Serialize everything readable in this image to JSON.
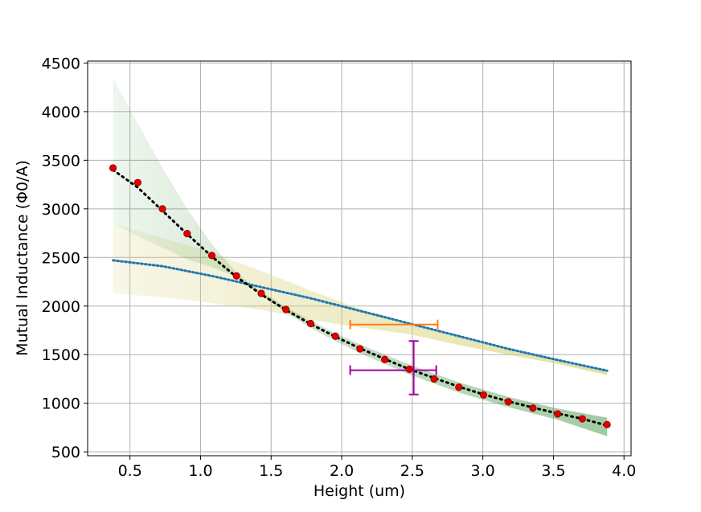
{
  "chart_data": {
    "type": "scatter",
    "xlabel": "Height (um)",
    "ylabel": "Mutual Inductance (Φ0/A)",
    "xlim": [
      0.2,
      4.05
    ],
    "ylim": [
      460,
      4520
    ],
    "grid": true,
    "x_ticks": [
      "0.5",
      "1.0",
      "1.5",
      "2.0",
      "2.5",
      "3.0",
      "3.5",
      "4.0"
    ],
    "y_ticks": [
      "500",
      "1000",
      "1500",
      "2000",
      "2500",
      "3000",
      "3500",
      "4000",
      "4500"
    ],
    "colors": {
      "points": "#e00000",
      "fit_black": "#000000",
      "fit_blue": "#1f77b4",
      "band_green": "#2e8b2e",
      "band_yellow": "#d8d27a",
      "err_orange": "#ff7f0e",
      "err_purple": "#a000a0"
    },
    "points": {
      "x": [
        0.38,
        0.555,
        0.73,
        0.905,
        1.08,
        1.255,
        1.43,
        1.605,
        1.78,
        1.955,
        2.13,
        2.305,
        2.48,
        2.655,
        2.83,
        3.005,
        3.18,
        3.355,
        3.53,
        3.705,
        3.88
      ],
      "y": [
        3420,
        3270,
        3000,
        2745,
        2520,
        2310,
        2130,
        1965,
        1820,
        1690,
        1560,
        1450,
        1350,
        1250,
        1165,
        1085,
        1015,
        950,
        890,
        840,
        780
      ]
    },
    "black_fit": {
      "x": [
        0.38,
        0.555,
        0.73,
        0.905,
        1.08,
        1.255,
        1.43,
        1.605,
        1.78,
        1.955,
        2.13,
        2.305,
        2.48,
        2.655,
        2.83,
        3.005,
        3.18,
        3.355,
        3.53,
        3.705,
        3.88
      ],
      "y": [
        3400,
        3220,
        2980,
        2740,
        2510,
        2300,
        2120,
        1960,
        1815,
        1685,
        1565,
        1455,
        1350,
        1260,
        1170,
        1090,
        1020,
        955,
        895,
        840,
        770
      ]
    },
    "blue_fit": {
      "x": [
        0.38,
        0.73,
        1.08,
        1.43,
        1.78,
        2.13,
        2.48,
        2.83,
        3.18,
        3.53,
        3.88
      ],
      "y": [
        2470,
        2410,
        2310,
        2195,
        2080,
        1950,
        1820,
        1690,
        1560,
        1445,
        1335
      ]
    },
    "green_band": {
      "x": [
        0.38,
        0.555,
        0.73,
        0.905,
        1.08,
        1.255,
        1.43,
        1.605,
        1.78,
        1.955,
        2.13,
        2.48,
        2.83,
        3.18,
        3.53,
        3.88
      ],
      "upper": [
        4340,
        3880,
        3420,
        3000,
        2640,
        2340,
        2150,
        1990,
        1850,
        1720,
        1605,
        1395,
        1215,
        1065,
        945,
        850
      ],
      "lower": [
        2850,
        2720,
        2600,
        2480,
        2400,
        2300,
        2110,
        1935,
        1775,
        1640,
        1515,
        1295,
        1110,
        960,
        830,
        660
      ]
    },
    "yellow_band": {
      "x": [
        0.38,
        0.73,
        1.08,
        1.43,
        1.78,
        2.13,
        2.48,
        2.83,
        3.18,
        3.53,
        3.88
      ],
      "upper": [
        2850,
        2700,
        2550,
        2360,
        2160,
        1970,
        1830,
        1690,
        1560,
        1445,
        1345
      ],
      "lower": [
        2130,
        2090,
        2030,
        1960,
        1860,
        1780,
        1710,
        1600,
        1500,
        1405,
        1290
      ]
    },
    "error_bars": [
      {
        "color": "orange",
        "x": 2.37,
        "y": 1810,
        "xerr_low": 2.06,
        "xerr_high": 2.68
      },
      {
        "color": "purple",
        "x": 2.51,
        "y": 1340,
        "xerr_low": 2.06,
        "xerr_high": 2.67,
        "yerr_low": 1090,
        "yerr_high": 1640
      }
    ]
  }
}
